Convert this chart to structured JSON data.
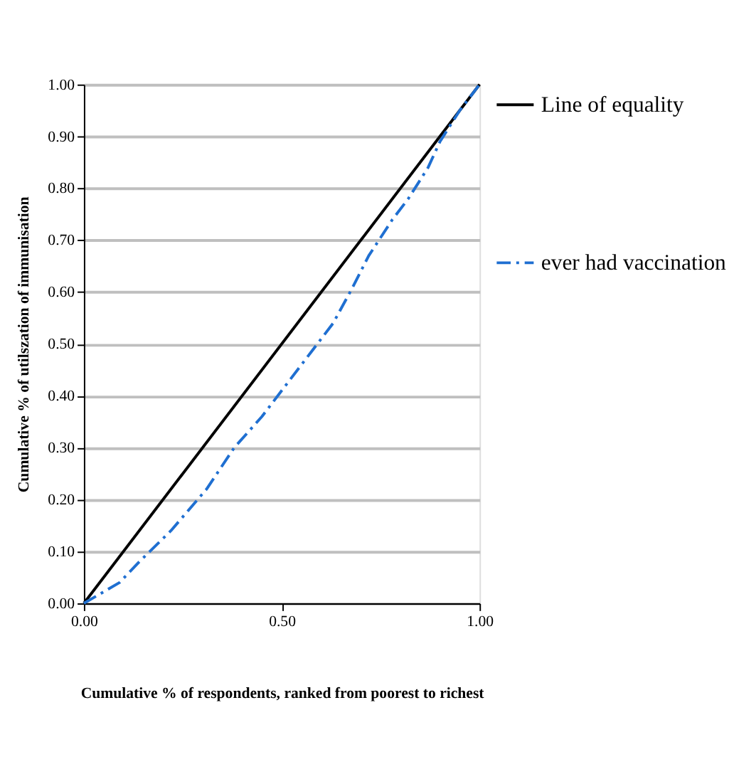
{
  "chart_data": {
    "type": "line",
    "xlabel": "Cumulative % of  respondents, ranked from poorest to richest",
    "ylabel": "Cumulative % of utilszation of immunisation",
    "xlim": [
      0,
      1
    ],
    "ylim": [
      0,
      1
    ],
    "xticks": [
      {
        "value": 0,
        "label": "0.00"
      },
      {
        "value": 0.5,
        "label": "0.50"
      },
      {
        "value": 1,
        "label": "1.00"
      }
    ],
    "yticks": [
      {
        "value": 0,
        "label": "0.00"
      },
      {
        "value": 0.1,
        "label": "0.10"
      },
      {
        "value": 0.2,
        "label": "0.20"
      },
      {
        "value": 0.3,
        "label": "0.30"
      },
      {
        "value": 0.4,
        "label": "0.40"
      },
      {
        "value": 0.5,
        "label": "0.50"
      },
      {
        "value": 0.6,
        "label": "0.60"
      },
      {
        "value": 0.7,
        "label": "0.70"
      },
      {
        "value": 0.8,
        "label": "0.80"
      },
      {
        "value": 0.9,
        "label": "0.90"
      },
      {
        "value": 1,
        "label": "1.00"
      }
    ],
    "grid": "y",
    "legend": "right",
    "marker": "none",
    "series": [
      {
        "name": "Line of equality",
        "color": "#000000",
        "line_style": "solid",
        "x": [
          0,
          1
        ],
        "values": [
          0,
          1
        ]
      },
      {
        "name": "ever had vaccination",
        "color": "#1f6fd1",
        "line_style": "dashed",
        "x": [
          0,
          0.09,
          0.14,
          0.22,
          0.31,
          0.38,
          0.45,
          0.5,
          0.58,
          0.63,
          0.68,
          0.72,
          0.78,
          0.82,
          0.87,
          0.9,
          0.95,
          1
        ],
        "values": [
          0,
          0.04,
          0.08,
          0.14,
          0.22,
          0.3,
          0.36,
          0.41,
          0.49,
          0.54,
          0.61,
          0.67,
          0.74,
          0.78,
          0.84,
          0.89,
          0.95,
          1
        ]
      }
    ]
  }
}
